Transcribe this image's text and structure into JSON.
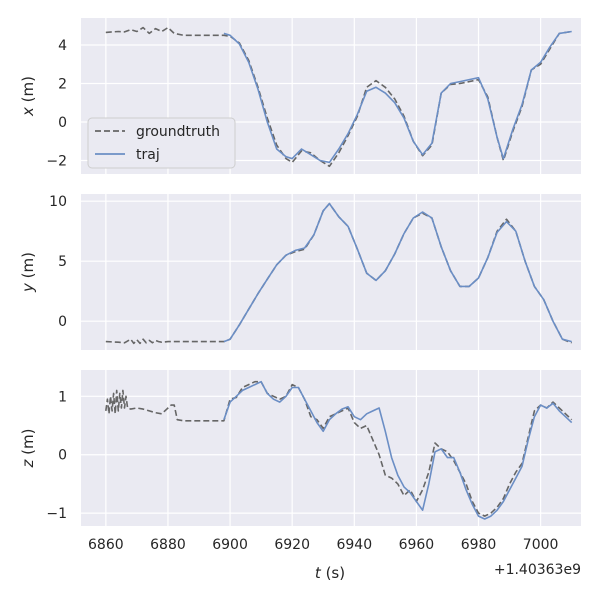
{
  "chart_data": {
    "type": "line",
    "xlabel_var": "t",
    "xlabel_unit": "(s)",
    "x_ticks": [
      "6860",
      "6880",
      "6900",
      "6920",
      "6940",
      "6960",
      "6980",
      "7000"
    ],
    "x_tick_values": [
      6860,
      6880,
      6900,
      6920,
      6940,
      6960,
      6980,
      7000
    ],
    "x_offset_label": "+1.40363e9",
    "xlim": [
      6852,
      7013
    ],
    "legend": {
      "placement": "lower-left of top panel",
      "entries": [
        "groundtruth",
        "traj"
      ]
    },
    "style": {
      "background": "#eaeaf2",
      "grid": "#ffffff",
      "colors": {
        "groundtruth": "#666666",
        "traj": "#6b8ec5"
      },
      "line_styles": {
        "groundtruth": "dashed",
        "traj": "solid"
      }
    },
    "subplots": [
      {
        "ylabel_var": "x",
        "ylabel_unit": "(m)",
        "ylim": [
          -2.7,
          5.4
        ],
        "y_ticks": [
          "4",
          "2",
          "0",
          "−2"
        ],
        "y_tick_values": [
          4,
          2,
          0,
          -2
        ],
        "series": [
          {
            "name": "groundtruth",
            "x": [
              6860,
              6864,
              6866,
              6868,
              6870,
              6872,
              6874,
              6876,
              6878,
              6880,
              6882,
              6885,
              6890,
              6895,
              6898,
              6900,
              6903,
              6906,
              6909,
              6912,
              6915,
              6918,
              6920,
              6923,
              6926,
              6929,
              6932,
              6935,
              6938,
              6941,
              6944,
              6947,
              6950,
              6953,
              6956,
              6959,
              6962,
              6965,
              6968,
              6971,
              6974,
              6977,
              6980,
              6983,
              6986,
              6988,
              6991,
              6994,
              6997,
              7000,
              7003,
              7006,
              7010
            ],
            "y": [
              4.65,
              4.7,
              4.68,
              4.8,
              4.7,
              4.9,
              4.6,
              4.85,
              4.7,
              4.9,
              4.6,
              4.5,
              4.5,
              4.5,
              4.5,
              4.45,
              4.1,
              3.2,
              1.8,
              0.2,
              -1.2,
              -1.9,
              -2.1,
              -1.5,
              -1.6,
              -2.0,
              -2.3,
              -1.6,
              -0.7,
              0.3,
              1.8,
              2.15,
              1.8,
              1.2,
              0.3,
              -1.0,
              -1.75,
              -1.2,
              1.5,
              1.95,
              2.0,
              2.1,
              2.2,
              1.3,
              -0.8,
              -2.0,
              -0.5,
              0.8,
              2.7,
              3.0,
              3.8,
              4.6,
              4.7
            ]
          },
          {
            "name": "traj",
            "x": [
              6898,
              6900,
              6903,
              6906,
              6909,
              6912,
              6915,
              6918,
              6920,
              6923,
              6926,
              6929,
              6932,
              6935,
              6938,
              6941,
              6944,
              6947,
              6950,
              6953,
              6956,
              6959,
              6962,
              6965,
              6968,
              6971,
              6974,
              6977,
              6980,
              6983,
              6986,
              6988,
              6991,
              6994,
              6997,
              7000,
              7003,
              7006,
              7010
            ],
            "y": [
              4.6,
              4.5,
              4.05,
              3.1,
              1.7,
              0.0,
              -1.4,
              -1.8,
              -1.9,
              -1.4,
              -1.7,
              -2.0,
              -2.1,
              -1.4,
              -0.6,
              0.4,
              1.6,
              1.8,
              1.5,
              1.0,
              0.2,
              -1.0,
              -1.7,
              -1.1,
              1.5,
              2.0,
              2.1,
              2.2,
              2.3,
              1.2,
              -0.8,
              -1.9,
              -0.4,
              0.9,
              2.7,
              3.1,
              3.9,
              4.6,
              4.7
            ]
          }
        ]
      },
      {
        "ylabel_var": "y",
        "ylabel_unit": "(m)",
        "ylim": [
          -2.4,
          10.6
        ],
        "y_ticks": [
          "10",
          "5",
          "0"
        ],
        "y_tick_values": [
          10,
          5,
          0
        ],
        "series": [
          {
            "name": "groundtruth",
            "x": [
              6860,
              6864,
              6866,
              6868,
              6869,
              6870,
              6871,
              6872,
              6873,
              6874,
              6875,
              6876,
              6877,
              6878,
              6880,
              6885,
              6890,
              6895,
              6898,
              6900,
              6903,
              6906,
              6909,
              6912,
              6915,
              6918,
              6921,
              6924,
              6927,
              6930,
              6932,
              6935,
              6938,
              6941,
              6944,
              6947,
              6950,
              6953,
              6956,
              6959,
              6962,
              6965,
              6968,
              6971,
              6974,
              6977,
              6980,
              6983,
              6986,
              6989,
              6992,
              6995,
              6998,
              7001,
              7004,
              7007,
              7010
            ],
            "y": [
              -1.7,
              -1.75,
              -1.8,
              -1.5,
              -1.85,
              -1.55,
              -1.85,
              -1.5,
              -1.8,
              -1.6,
              -1.8,
              -1.6,
              -1.7,
              -1.75,
              -1.7,
              -1.7,
              -1.7,
              -1.7,
              -1.7,
              -1.5,
              -0.3,
              1.0,
              2.3,
              3.5,
              4.7,
              5.5,
              5.8,
              6.0,
              7.2,
              9.2,
              9.8,
              8.7,
              7.9,
              6.0,
              4.0,
              3.4,
              4.2,
              5.6,
              7.3,
              8.6,
              9.0,
              8.6,
              6.2,
              4.2,
              2.9,
              2.9,
              3.6,
              5.3,
              7.5,
              8.5,
              7.5,
              5.0,
              2.9,
              1.8,
              0.0,
              -1.5,
              -1.8
            ]
          },
          {
            "name": "traj",
            "x": [
              6898,
              6900,
              6903,
              6906,
              6909,
              6912,
              6915,
              6918,
              6921,
              6924,
              6927,
              6930,
              6932,
              6935,
              6938,
              6941,
              6944,
              6947,
              6950,
              6953,
              6956,
              6959,
              6962,
              6965,
              6968,
              6971,
              6974,
              6977,
              6980,
              6983,
              6986,
              6989,
              6992,
              6995,
              6998,
              7001,
              7004,
              7007,
              7010
            ],
            "y": [
              -1.7,
              -1.5,
              -0.3,
              1.0,
              2.3,
              3.5,
              4.7,
              5.5,
              5.9,
              6.1,
              7.2,
              9.2,
              9.8,
              8.7,
              7.9,
              6.0,
              4.0,
              3.4,
              4.2,
              5.6,
              7.3,
              8.6,
              9.1,
              8.6,
              6.2,
              4.2,
              2.9,
              2.9,
              3.6,
              5.3,
              7.4,
              8.3,
              7.5,
              5.0,
              2.9,
              1.8,
              0.0,
              -1.5,
              -1.7
            ]
          }
        ]
      },
      {
        "ylabel_var": "z",
        "ylabel_unit": "(m)",
        "ylim": [
          -1.22,
          1.45
        ],
        "y_ticks": [
          "1",
          "0",
          "−1"
        ],
        "y_tick_values": [
          1,
          0,
          -1
        ],
        "series": [
          {
            "name": "groundtruth",
            "x": [
              6860,
              6860.5,
              6861,
              6861.5,
              6862,
              6862.5,
              6863,
              6863.5,
              6864,
              6864.5,
              6865,
              6865.5,
              6866,
              6866.5,
              6867,
              6868,
              6870,
              6872,
              6874,
              6876,
              6878,
              6880,
              6881,
              6882,
              6883,
              6885,
              6890,
              6895,
              6898,
              6900,
              6902,
              6904,
              6906,
              6908,
              6910,
              6912,
              6914,
              6916,
              6918,
              6920,
              6922,
              6924,
              6926,
              6928,
              6930,
              6932,
              6934,
              6936,
              6938,
              6940,
              6942,
              6944,
              6946,
              6948,
              6950,
              6952,
              6954,
              6956,
              6958,
              6960,
              6962,
              6964,
              6966,
              6968,
              6970,
              6972,
              6974,
              6976,
              6978,
              6980,
              6982,
              6984,
              6986,
              6988,
              6990,
              6992,
              6994,
              6996,
              6998,
              7000,
              7002,
              7004,
              7006,
              7008,
              7010
            ],
            "y": [
              0.75,
              0.95,
              0.7,
              1.0,
              0.75,
              1.05,
              0.7,
              1.1,
              0.75,
              1.05,
              0.8,
              1.1,
              0.8,
              1.0,
              0.8,
              0.78,
              0.8,
              0.78,
              0.75,
              0.72,
              0.7,
              0.8,
              0.85,
              0.85,
              0.6,
              0.58,
              0.58,
              0.58,
              0.58,
              0.95,
              0.98,
              1.15,
              1.2,
              1.25,
              1.25,
              1.05,
              1.0,
              0.95,
              1.0,
              1.2,
              1.15,
              0.95,
              0.65,
              0.6,
              0.45,
              0.65,
              0.7,
              0.75,
              0.8,
              0.55,
              0.45,
              0.5,
              0.25,
              0.0,
              -0.35,
              -0.4,
              -0.5,
              -0.7,
              -0.6,
              -0.8,
              -0.6,
              -0.3,
              0.2,
              0.1,
              0.05,
              -0.1,
              -0.3,
              -0.5,
              -0.8,
              -1.0,
              -1.05,
              -1.0,
              -0.9,
              -0.75,
              -0.5,
              -0.3,
              -0.15,
              0.3,
              0.75,
              0.85,
              0.8,
              0.9,
              0.8,
              0.7,
              0.6
            ]
          },
          {
            "name": "traj",
            "x": [
              6898,
              6900,
              6902,
              6904,
              6906,
              6908,
              6910,
              6912,
              6914,
              6916,
              6918,
              6920,
              6922,
              6924,
              6926,
              6928,
              6930,
              6932,
              6934,
              6936,
              6938,
              6940,
              6942,
              6944,
              6946,
              6948,
              6950,
              6952,
              6954,
              6956,
              6958,
              6960,
              6962,
              6964,
              6966,
              6968,
              6970,
              6972,
              6974,
              6976,
              6978,
              6980,
              6982,
              6984,
              6986,
              6988,
              6990,
              6992,
              6994,
              6996,
              6998,
              7000,
              7002,
              7004,
              7006,
              7008,
              7010
            ],
            "y": [
              0.6,
              0.9,
              1.0,
              1.1,
              1.15,
              1.2,
              1.25,
              1.05,
              0.95,
              0.9,
              1.0,
              1.15,
              1.15,
              0.95,
              0.75,
              0.55,
              0.4,
              0.6,
              0.7,
              0.78,
              0.82,
              0.65,
              0.6,
              0.7,
              0.75,
              0.8,
              0.4,
              -0.05,
              -0.35,
              -0.55,
              -0.65,
              -0.8,
              -0.95,
              -0.5,
              0.05,
              0.1,
              -0.05,
              -0.05,
              -0.3,
              -0.6,
              -0.85,
              -1.05,
              -1.1,
              -1.05,
              -0.95,
              -0.8,
              -0.6,
              -0.4,
              -0.2,
              0.25,
              0.65,
              0.85,
              0.8,
              0.88,
              0.75,
              0.65,
              0.55
            ]
          }
        ]
      }
    ]
  }
}
